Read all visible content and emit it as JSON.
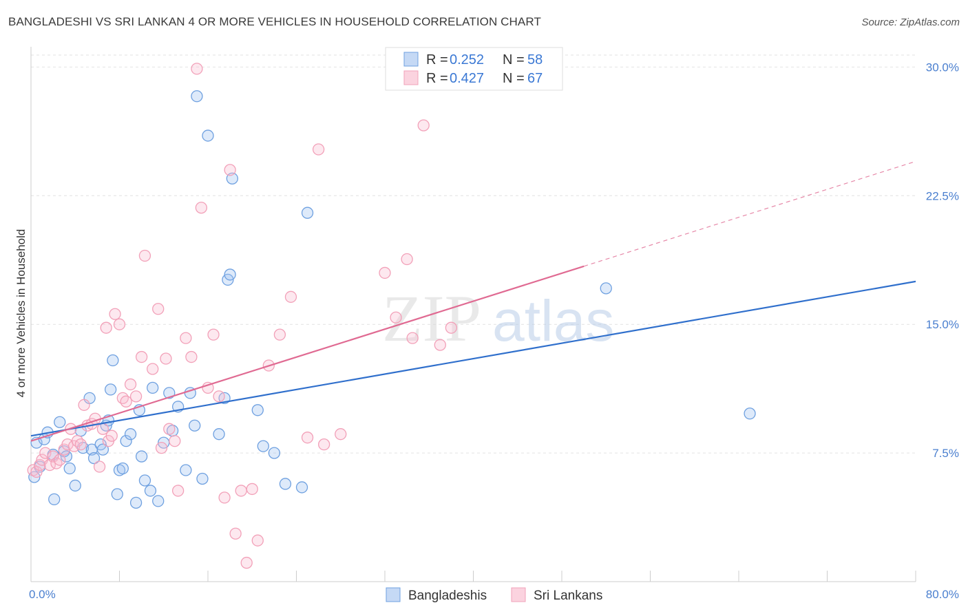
{
  "title": "BANGLADESHI VS SRI LANKAN 4 OR MORE VEHICLES IN HOUSEHOLD CORRELATION CHART",
  "source": "Source: ZipAtlas.com",
  "watermark": {
    "part1": "ZIP",
    "part2": "atlas"
  },
  "chart_data": {
    "type": "scatter",
    "xlabel": "",
    "ylabel": "4 or more Vehicles in Household",
    "xlim": [
      0,
      80
    ],
    "ylim": [
      0,
      31.5
    ],
    "x_tick_labels": [
      "0.0%",
      "80.0%"
    ],
    "y_ticks": [
      7.5,
      15.0,
      22.5,
      30.0
    ],
    "y_tick_labels": [
      "7.5%",
      "15.0%",
      "22.5%",
      "30.0%"
    ],
    "grid": true,
    "legend_position": "top-center",
    "bottom_legend": [
      "Bangladeshis",
      "Sri Lankans"
    ],
    "series": [
      {
        "name": "Bangladeshis",
        "color": "#6ea0e0",
        "line_color": "#2f6fcc",
        "r_label": "R = ",
        "r_value": "0.252",
        "n_label": "N = ",
        "n_value": "58",
        "trend": {
          "x": [
            0,
            80
          ],
          "y": [
            8.5,
            17.5
          ],
          "dashed_from": null
        },
        "points": [
          [
            0.3,
            6.1
          ],
          [
            0.5,
            8.1
          ],
          [
            0.8,
            6.7
          ],
          [
            1.2,
            8.3
          ],
          [
            1.5,
            8.7
          ],
          [
            2.0,
            7.4
          ],
          [
            2.1,
            4.8
          ],
          [
            2.6,
            9.3
          ],
          [
            3.0,
            7.6
          ],
          [
            3.2,
            7.3
          ],
          [
            3.5,
            6.6
          ],
          [
            4.0,
            5.6
          ],
          [
            4.5,
            8.8
          ],
          [
            4.7,
            7.8
          ],
          [
            5.3,
            10.7
          ],
          [
            5.5,
            7.7
          ],
          [
            5.7,
            7.2
          ],
          [
            6.3,
            8.0
          ],
          [
            6.5,
            7.7
          ],
          [
            6.8,
            9.1
          ],
          [
            7.0,
            9.4
          ],
          [
            7.2,
            11.2
          ],
          [
            7.4,
            12.9
          ],
          [
            7.8,
            5.1
          ],
          [
            8.0,
            6.5
          ],
          [
            8.3,
            6.6
          ],
          [
            8.6,
            8.2
          ],
          [
            9.0,
            8.6
          ],
          [
            9.5,
            4.6
          ],
          [
            9.8,
            10.0
          ],
          [
            10.0,
            7.3
          ],
          [
            10.3,
            5.9
          ],
          [
            10.8,
            5.3
          ],
          [
            11.0,
            11.3
          ],
          [
            11.5,
            4.7
          ],
          [
            12.0,
            8.1
          ],
          [
            12.5,
            11.0
          ],
          [
            12.8,
            8.8
          ],
          [
            13.3,
            10.2
          ],
          [
            14.0,
            6.5
          ],
          [
            14.4,
            11.0
          ],
          [
            14.8,
            9.1
          ],
          [
            15.0,
            28.3
          ],
          [
            15.5,
            6.0
          ],
          [
            16.0,
            26.0
          ],
          [
            17.0,
            8.6
          ],
          [
            17.5,
            10.7
          ],
          [
            17.8,
            17.6
          ],
          [
            18.2,
            23.5
          ],
          [
            18.0,
            17.9
          ],
          [
            20.5,
            10.0
          ],
          [
            21.0,
            7.9
          ],
          [
            22.0,
            7.5
          ],
          [
            23.0,
            5.7
          ],
          [
            24.5,
            5.5
          ],
          [
            25.0,
            21.5
          ],
          [
            52.0,
            17.1
          ],
          [
            65.0,
            9.8
          ]
        ]
      },
      {
        "name": "Sri Lankans",
        "color": "#f2a0b8",
        "line_color": "#e06a92",
        "r_label": "R = ",
        "r_value": "0.427",
        "n_label": "N = ",
        "n_value": "67",
        "trend": {
          "x": [
            0,
            80
          ],
          "y": [
            8.2,
            24.5
          ],
          "solid_until": 50
        },
        "points": [
          [
            0.2,
            6.5
          ],
          [
            0.5,
            6.4
          ],
          [
            0.8,
            6.8
          ],
          [
            1.0,
            7.1
          ],
          [
            1.3,
            7.5
          ],
          [
            1.7,
            6.8
          ],
          [
            2.0,
            7.3
          ],
          [
            2.3,
            6.9
          ],
          [
            2.6,
            7.1
          ],
          [
            3.0,
            7.7
          ],
          [
            3.3,
            8.0
          ],
          [
            3.6,
            8.9
          ],
          [
            3.9,
            7.9
          ],
          [
            4.2,
            8.2
          ],
          [
            4.5,
            8.0
          ],
          [
            4.8,
            10.3
          ],
          [
            5.1,
            9.1
          ],
          [
            5.5,
            9.2
          ],
          [
            5.8,
            9.5
          ],
          [
            6.2,
            6.7
          ],
          [
            6.5,
            8.9
          ],
          [
            6.8,
            14.8
          ],
          [
            7.0,
            8.2
          ],
          [
            7.3,
            8.5
          ],
          [
            7.6,
            15.6
          ],
          [
            8.0,
            15.0
          ],
          [
            8.3,
            10.7
          ],
          [
            8.6,
            10.5
          ],
          [
            9.0,
            11.5
          ],
          [
            9.5,
            10.8
          ],
          [
            10.0,
            13.1
          ],
          [
            10.3,
            19.0
          ],
          [
            11.0,
            12.4
          ],
          [
            11.5,
            15.9
          ],
          [
            11.8,
            7.8
          ],
          [
            12.2,
            13.0
          ],
          [
            12.5,
            8.9
          ],
          [
            13.0,
            8.2
          ],
          [
            13.3,
            5.3
          ],
          [
            14.0,
            14.2
          ],
          [
            14.5,
            13.1
          ],
          [
            15.0,
            29.9
          ],
          [
            15.4,
            21.8
          ],
          [
            16.0,
            11.3
          ],
          [
            16.5,
            14.4
          ],
          [
            17.0,
            10.8
          ],
          [
            17.5,
            4.9
          ],
          [
            18.0,
            24.0
          ],
          [
            18.5,
            2.8
          ],
          [
            19.0,
            5.3
          ],
          [
            19.5,
            1.1
          ],
          [
            20.0,
            5.4
          ],
          [
            20.5,
            2.4
          ],
          [
            21.5,
            12.6
          ],
          [
            22.5,
            14.4
          ],
          [
            23.5,
            16.6
          ],
          [
            25.0,
            8.4
          ],
          [
            26.0,
            25.2
          ],
          [
            28.0,
            8.6
          ],
          [
            32.0,
            18.0
          ],
          [
            33.0,
            15.4
          ],
          [
            34.0,
            18.8
          ],
          [
            34.5,
            14.2
          ],
          [
            35.5,
            26.6
          ],
          [
            37.0,
            13.8
          ],
          [
            38.0,
            14.8
          ],
          [
            26.5,
            8.0
          ]
        ]
      }
    ]
  }
}
